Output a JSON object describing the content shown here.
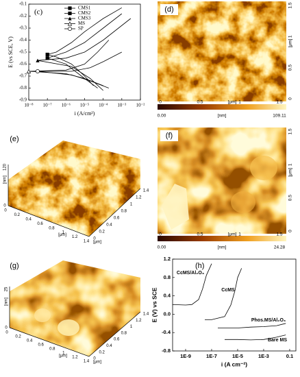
{
  "chart_data": [
    {
      "type": "line",
      "panel_label": "(c)",
      "xlabel": "i (A/cm²)",
      "ylabel": "E (vs SCE, V)",
      "log_x": true,
      "xlim": [
        1e-08,
        0.01
      ],
      "ylim": [
        -0.9,
        -0.1
      ],
      "xticks": [
        {
          "value": 1e-08,
          "label": "10⁻⁸"
        },
        {
          "value": 1e-07,
          "label": "10⁻⁷"
        },
        {
          "value": 1e-06,
          "label": "10⁻⁶"
        },
        {
          "value": 1e-05,
          "label": "10⁻⁵"
        },
        {
          "value": 0.0001,
          "label": "10⁻⁴"
        },
        {
          "value": 0.001,
          "label": "10⁻³"
        },
        {
          "value": 0.01,
          "label": "10⁻²"
        }
      ],
      "yticks": [
        -0.1,
        -0.2,
        -0.3,
        -0.4,
        -0.5,
        -0.6,
        -0.7,
        -0.8,
        -0.9
      ],
      "legend": "upper-center",
      "series": [
        {
          "name": "CMS1",
          "color": "#000000",
          "marker": "square",
          "x": [
            3e-05,
            1e-05,
            2e-06,
            3e-07,
            1e-07,
            3e-07,
            2e-06,
            1e-05,
            0.0001,
            0.001
          ],
          "values": [
            -0.78,
            -0.7,
            -0.6,
            -0.54,
            -0.52,
            -0.5,
            -0.42,
            -0.33,
            -0.22,
            -0.13
          ]
        },
        {
          "name": "CMS2",
          "color": "#000000",
          "marker": "square",
          "x": [
            5e-05,
            1e-05,
            1e-06,
            1e-07,
            1e-06,
            1e-05,
            0.0001,
            0.001
          ],
          "values": [
            -0.8,
            -0.72,
            -0.6,
            -0.55,
            -0.5,
            -0.42,
            -0.3,
            -0.18
          ]
        },
        {
          "name": "CMS3",
          "color": "#000000",
          "marker": "triangle",
          "x": [
            0.0001,
            2e-05,
            2e-06,
            3e-08,
            1e-06,
            1e-05,
            0.0001,
            0.003
          ],
          "values": [
            -0.82,
            -0.72,
            -0.62,
            -0.57,
            -0.55,
            -0.5,
            -0.4,
            -0.22
          ]
        },
        {
          "name": "MS",
          "color": "#000000",
          "marker": "open-triangle",
          "x": [
            0.0001,
            1e-05,
            1e-06,
            1e-08,
            1e-06,
            1e-05,
            5e-05,
            0.0002
          ],
          "values": [
            -0.78,
            -0.72,
            -0.68,
            -0.66,
            -0.65,
            -0.6,
            -0.5,
            -0.4
          ]
        },
        {
          "name": "SP",
          "color": "#000000",
          "marker": "open-circle",
          "x": [
            0.0002,
            2e-05,
            2e-06,
            3e-08,
            2e-06,
            2e-05,
            0.0001,
            0.001
          ],
          "values": [
            -0.8,
            -0.74,
            -0.69,
            -0.66,
            -0.66,
            -0.63,
            -0.58,
            -0.5
          ]
        }
      ]
    },
    {
      "type": "line",
      "panel_label": "(h)",
      "xlabel": "i (A cm⁻²)",
      "ylabel": "E (V) vs SCE",
      "log_x": true,
      "xlim": [
        1e-10,
        0.3
      ],
      "ylim": [
        -0.8,
        1.2
      ],
      "xticks": [
        {
          "value": 1e-09,
          "label": "1E-9"
        },
        {
          "value": 1e-07,
          "label": "1E-7"
        },
        {
          "value": 1e-05,
          "label": "1E-5"
        },
        {
          "value": 0.001,
          "label": "1E-3"
        },
        0.1
      ],
      "yticks": [
        -0.8,
        -0.4,
        {
          "value": 0,
          "label": "0.0"
        },
        0.4,
        0.8,
        1.2
      ],
      "series": [
        {
          "name": "CcMS/Al₂O₃",
          "color": "#000000",
          "x": [
            1e-10,
            1e-09,
            3e-09,
            1e-08,
            2e-08,
            4e-08,
            1e-07
          ],
          "values": [
            0.21,
            0.2,
            0.21,
            0.32,
            0.55,
            0.85,
            1.1
          ]
        },
        {
          "name": "CcMS",
          "color": "#000000",
          "x": [
            3e-08,
            1e-07,
            1e-06,
            3e-06,
            6e-06,
            1e-05,
            2e-05
          ],
          "values": [
            -0.12,
            -0.12,
            -0.05,
            0.2,
            0.5,
            0.8,
            1.0
          ]
        },
        {
          "name": "Phos.MS/Al₂O₃",
          "color": "#000000",
          "x": [
            3e-07,
            2e-06,
            1e-05,
            0.0001,
            0.001,
            0.01,
            0.05
          ],
          "values": [
            -0.3,
            -0.3,
            -0.3,
            -0.28,
            -0.27,
            -0.25,
            -0.2
          ]
        },
        {
          "name": "Bare MS",
          "color": "#000000",
          "x": [
            1e-06,
            1e-05,
            0.0001,
            0.001,
            0.01,
            0.05
          ],
          "values": [
            -0.55,
            -0.55,
            -0.56,
            -0.55,
            -0.5,
            -0.45
          ]
        }
      ]
    }
  ],
  "images": [
    {
      "label": "(d)",
      "xticks": [
        "0",
        "0.5",
        "1",
        "1.5"
      ],
      "xunit": "[μm]",
      "yticks": [
        "0",
        "0.5",
        "1",
        "1.5"
      ],
      "yunit": "[μm]",
      "colorbar": [
        "0.00",
        "[nm]",
        "109.11"
      ]
    },
    {
      "label": "(e)",
      "xticks": [
        "0",
        "0.2",
        "0.4",
        "0.6",
        "0.8",
        "1",
        "1.2",
        "1.4"
      ],
      "xunit": "[μm]",
      "yticks": [
        "0",
        "0.2",
        "0.4",
        "0.6",
        "0.8",
        "1",
        "1.2",
        "1.4"
      ],
      "yunit": "[μm]",
      "zticks": [
        "0",
        "120"
      ],
      "zunit": "[nm]"
    },
    {
      "label": "(f)",
      "xticks": [
        "0",
        "0.5",
        "1",
        "1.5"
      ],
      "xunit": "[μm]",
      "yticks": [
        "0",
        "0.5",
        "1",
        "1.5"
      ],
      "yunit": "[μm]",
      "colorbar": [
        "0.00",
        "[nm]",
        "24.28"
      ]
    },
    {
      "label": "(g)",
      "xticks": [
        "0",
        "0.2",
        "0.4",
        "0.6",
        "0.8",
        "1",
        "1.2",
        "1.4"
      ],
      "xunit": "[μm]",
      "yticks": [
        "0",
        "0.2",
        "0.4",
        "0.6",
        "0.8",
        "1",
        "1.2",
        "1.4"
      ],
      "yunit": "[μm]",
      "zticks": [
        "0",
        "25"
      ],
      "zunit": "[nm]"
    }
  ]
}
